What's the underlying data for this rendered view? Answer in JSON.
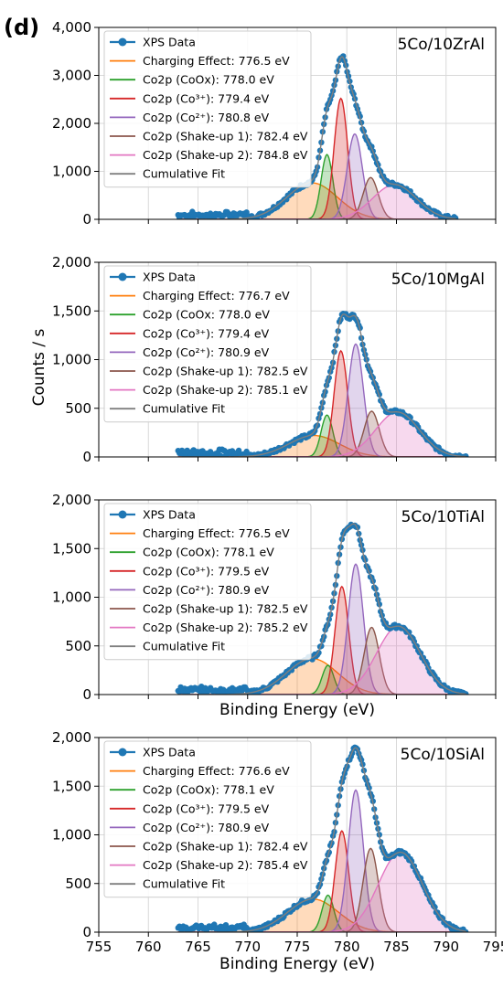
{
  "figure_label": "(d)",
  "shared": {
    "ylabel": "Counts / s",
    "xlabel": "Binding Energy (eV)",
    "x_ticks": [
      "755",
      "760",
      "765",
      "770",
      "775",
      "780",
      "785",
      "790",
      "795"
    ],
    "xlim": [
      755,
      795
    ],
    "grid": true,
    "legend_position": "upper-left"
  },
  "colors": {
    "data": "#1f77b4",
    "charging": "#ff7f0e",
    "cooox": "#2ca02c",
    "co3": "#d62728",
    "co2": "#9467bd",
    "shake1": "#8c564b",
    "shake2": "#e377c2",
    "cumulative": "#7f7f7f"
  },
  "chart_data": [
    {
      "type": "line",
      "panel_label": "5Co/10ZrAl",
      "ylim": [
        0,
        4000
      ],
      "y_ticks": [
        "0",
        "1,000",
        "2,000",
        "3,000",
        "4,000"
      ],
      "show_xlabel": false,
      "show_xticklabels": false,
      "data_x_range": [
        763,
        791
      ],
      "legend": [
        "XPS Data",
        "Charging Effect: 776.5 eV",
        "Co2p (CoOx): 778.0 eV",
        "Co2p (Co³⁺): 779.4 eV",
        "Co2p (Co²⁺): 780.8 eV",
        "Co2p (Shake-up 1): 782.4 eV",
        "Co2p (Shake-up 2): 784.8 eV",
        "Cumulative Fit"
      ],
      "components": [
        {
          "key": "charging",
          "center": 776.5,
          "height": 760,
          "fwhm": 6.0
        },
        {
          "key": "cooox",
          "center": 778.0,
          "height": 1350,
          "fwhm": 1.4
        },
        {
          "key": "co3",
          "center": 779.4,
          "height": 2520,
          "fwhm": 1.6
        },
        {
          "key": "co2",
          "center": 780.8,
          "height": 1780,
          "fwhm": 1.8
        },
        {
          "key": "shake1",
          "center": 782.4,
          "height": 870,
          "fwhm": 1.8
        },
        {
          "key": "shake2",
          "center": 784.8,
          "height": 720,
          "fwhm": 5.2
        }
      ]
    },
    {
      "type": "line",
      "panel_label": "5Co/10MgAl",
      "ylim": [
        0,
        2000
      ],
      "y_ticks": [
        "0",
        "500",
        "1,000",
        "1,500",
        "2,000"
      ],
      "show_xlabel": false,
      "show_xticklabels": false,
      "data_x_range": [
        763,
        792
      ],
      "legend": [
        "XPS Data",
        "Charging Effect: 776.7 eV",
        "Co2p (CoOx: 778.0 eV",
        "Co2p (Co³⁺): 779.4 eV",
        "Co2p (Co²⁺): 780.9 eV",
        "Co2p (Shake-up 1): 782.5 eV",
        "Co2p (Shake-up 2): 785.1 eV",
        "Cumulative Fit"
      ],
      "components": [
        {
          "key": "charging",
          "center": 776.7,
          "height": 220,
          "fwhm": 6.0
        },
        {
          "key": "cooox",
          "center": 778.0,
          "height": 430,
          "fwhm": 1.4
        },
        {
          "key": "co3",
          "center": 779.4,
          "height": 1090,
          "fwhm": 1.6
        },
        {
          "key": "co2",
          "center": 780.9,
          "height": 1160,
          "fwhm": 1.8
        },
        {
          "key": "shake1",
          "center": 782.5,
          "height": 470,
          "fwhm": 1.8
        },
        {
          "key": "shake2",
          "center": 785.1,
          "height": 460,
          "fwhm": 5.2
        }
      ]
    },
    {
      "type": "line",
      "panel_label": "5Co/10TiAl",
      "ylim": [
        0,
        2000
      ],
      "y_ticks": [
        "0",
        "500",
        "1,000",
        "1,500",
        "2,000"
      ],
      "show_xlabel": true,
      "show_xticklabels": false,
      "data_x_range": [
        763,
        792
      ],
      "legend": [
        "XPS Data",
        "Charging Effect: 776.5 eV",
        "Co2p (CoOx): 778.1 eV",
        "Co2p (Co³⁺): 779.5 eV",
        "Co2p (Co²⁺): 780.9 eV",
        "Co2p (Shake-up 1): 782.5 eV",
        "Co2p (Shake-up 2): 785.2 eV",
        "Cumulative Fit"
      ],
      "components": [
        {
          "key": "charging",
          "center": 776.5,
          "height": 370,
          "fwhm": 6.0
        },
        {
          "key": "cooox",
          "center": 778.1,
          "height": 300,
          "fwhm": 1.4
        },
        {
          "key": "co3",
          "center": 779.5,
          "height": 1110,
          "fwhm": 1.6
        },
        {
          "key": "co2",
          "center": 780.9,
          "height": 1340,
          "fwhm": 1.8
        },
        {
          "key": "shake1",
          "center": 782.5,
          "height": 690,
          "fwhm": 1.8
        },
        {
          "key": "shake2",
          "center": 785.2,
          "height": 700,
          "fwhm": 5.2
        }
      ]
    },
    {
      "type": "line",
      "panel_label": "5Co/10SiAl",
      "ylim": [
        0,
        2000
      ],
      "y_ticks": [
        "0",
        "500",
        "1,000",
        "1,500",
        "2,000"
      ],
      "show_xlabel": true,
      "show_xticklabels": true,
      "data_x_range": [
        763,
        792
      ],
      "legend": [
        "XPS Data",
        "Charging Effect: 776.6 eV",
        "Co2p (CoOx): 778.1 eV",
        "Co2p (Co³⁺): 779.5 eV",
        "Co2p (Co²⁺): 780.9 eV",
        "Co2p (Shake-up 1): 782.4 eV",
        "Co2p (Shake-up 2): 785.4 eV",
        "Cumulative Fit"
      ],
      "components": [
        {
          "key": "charging",
          "center": 776.6,
          "height": 340,
          "fwhm": 6.0
        },
        {
          "key": "cooox",
          "center": 778.1,
          "height": 380,
          "fwhm": 1.4
        },
        {
          "key": "co3",
          "center": 779.5,
          "height": 1040,
          "fwhm": 1.6
        },
        {
          "key": "co2",
          "center": 780.9,
          "height": 1460,
          "fwhm": 1.8
        },
        {
          "key": "shake1",
          "center": 782.4,
          "height": 860,
          "fwhm": 1.8
        },
        {
          "key": "shake2",
          "center": 785.4,
          "height": 820,
          "fwhm": 5.2
        }
      ]
    }
  ]
}
